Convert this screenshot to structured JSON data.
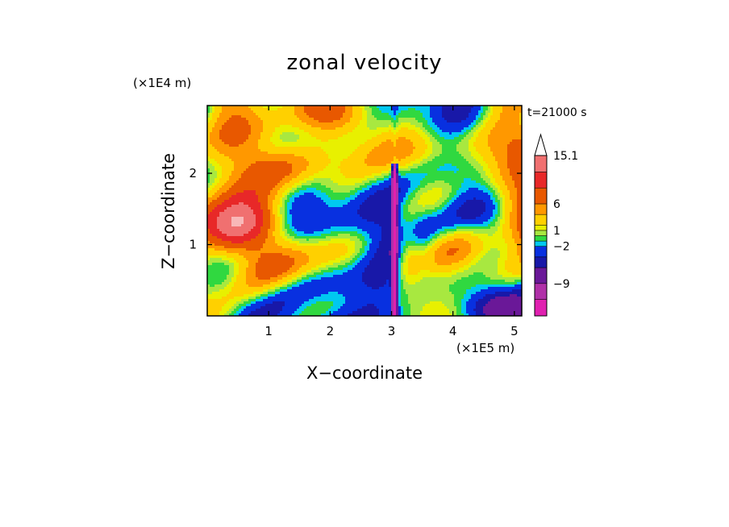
{
  "chart_data": {
    "type": "heatmap",
    "title": "zonal velocity",
    "xlabel": "X−coordinate",
    "ylabel": "Z−coordinate",
    "x_unit": "(×1E5 m)",
    "y_unit": "(×1E4 m)",
    "time_label": "t=21000 s",
    "xlim": [
      0,
      5.12
    ],
    "ylim": [
      0,
      2.95
    ],
    "x_ticks": [
      {
        "value": 1,
        "label": "1"
      },
      {
        "value": 2,
        "label": "2"
      },
      {
        "value": 3,
        "label": "3"
      },
      {
        "value": 4,
        "label": "4"
      },
      {
        "value": 5,
        "label": "5"
      }
    ],
    "y_ticks": [
      {
        "value": 1,
        "label": "1"
      },
      {
        "value": 2,
        "label": "2"
      }
    ],
    "colorbar": {
      "min": -15.1,
      "max": 15.1,
      "levels": [
        -15.1,
        -12,
        -9,
        -6,
        -4,
        -2,
        -1,
        0,
        1,
        2,
        4,
        6,
        9,
        12,
        15.1
      ],
      "colors": [
        "#e020b0",
        "#b030a8",
        "#6a1898",
        "#1818a8",
        "#0830e0",
        "#00c8f0",
        "#30d840",
        "#a8e840",
        "#e8f000",
        "#ffd000",
        "#ff9800",
        "#e85800",
        "#e82828",
        "#f07070",
        "#f8b8b8"
      ],
      "tick_labels": [
        {
          "value": 15.1,
          "label": "15.1"
        },
        {
          "value": 6,
          "label": "6"
        },
        {
          "value": 1,
          "label": "1"
        },
        {
          "value": -2,
          "label": "−2"
        },
        {
          "value": -9,
          "label": "−9"
        }
      ],
      "extend": "max"
    },
    "features": {
      "updraft_column_x": 3.05,
      "notes": "turbulent field with a narrow strong negative column near x=3"
    }
  }
}
